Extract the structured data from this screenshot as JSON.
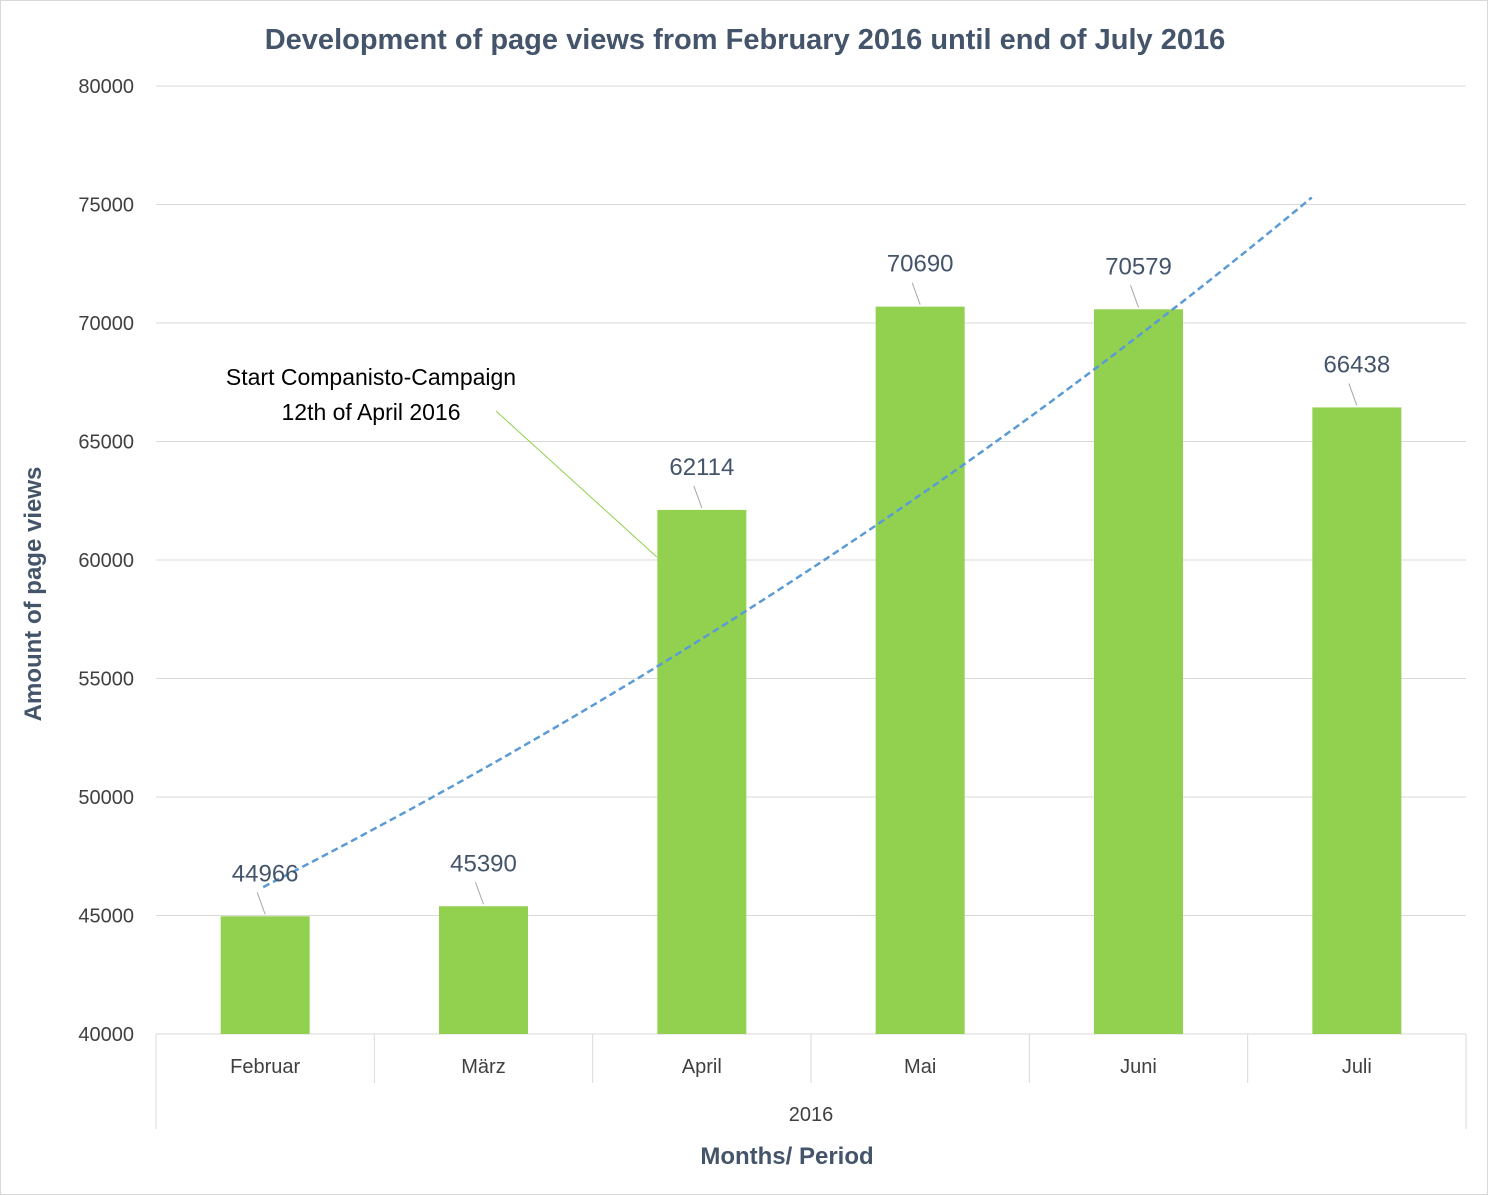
{
  "chart_data": {
    "type": "bar",
    "title": "Development of page views from February 2016 until end of July 2016",
    "xlabel": "Months/ Period",
    "ylabel": "Amount of page views",
    "group_label": "2016",
    "categories": [
      "Februar",
      "März",
      "April",
      "Mai",
      "Juni",
      "Juli"
    ],
    "values": [
      44966,
      45390,
      62114,
      70690,
      70579,
      66438
    ],
    "data_labels": [
      "44966",
      "45390",
      "62114",
      "70690",
      "70579",
      "66438"
    ],
    "ylim": [
      40000,
      80000
    ],
    "yticks": [
      40000,
      45000,
      50000,
      55000,
      60000,
      65000,
      70000,
      75000,
      80000
    ],
    "grid": true,
    "bar_color": "#92d050",
    "trendline": {
      "style": "dashed",
      "color": "#5b9bd5",
      "start_value": 46200,
      "end_value": 75300
    },
    "annotation": {
      "lines": [
        "Start Companisto-Campaign",
        "12th of April 2016"
      ],
      "target_category": "April",
      "leader_color": "#92d050"
    }
  }
}
